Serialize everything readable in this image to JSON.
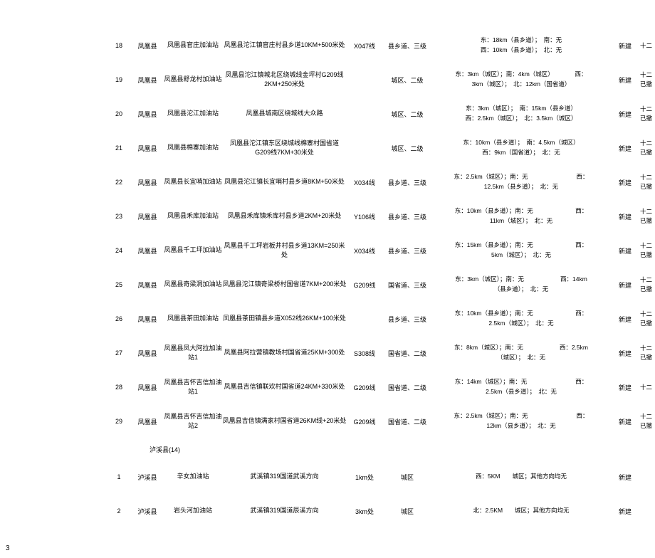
{
  "pageNumber": "3",
  "sectionHead": "泸溪县(14)",
  "rows": [
    {
      "idx": "18",
      "county": "凤凰县",
      "name": "凤凰县官庄加油站",
      "loc": "凤凰县沱江镇官庄村县乡道10KM+500米处",
      "road": "X047线",
      "class": "县乡道、三级",
      "dist1": "东：18km（县乡道）；　南：无",
      "dist2": "西：10km（县乡道）；　北：无",
      "build": "新建",
      "notes": "十二"
    },
    {
      "idx": "19",
      "county": "凤凰县",
      "name": "凤凰县舒龙村加油站",
      "loc": "凤凰县沱江镇城北区绕城线金坪村G209线2KM+250米处",
      "road": "",
      "class": "城区、二级",
      "dist1": "东：3km（城区）；南：4km（城区）　　　　西：",
      "dist2": "3km（城区）；　北：12km（国省道）",
      "build": "新建",
      "notes": "十二\n已撤"
    },
    {
      "idx": "20",
      "county": "凤凰县",
      "name": "凤凰县沱江加油站",
      "loc": "凤凰县城南区绕城线大众路",
      "road": "",
      "class": "城区、二级",
      "dist1": "东：3km（城区）；　南：15km（县乡道）",
      "dist2": "西：2.5km（城区）；　北：3.5km（城区）",
      "build": "新建",
      "notes": "十二\n已撤"
    },
    {
      "idx": "21",
      "county": "凤凰县",
      "name": "凤凰县棉寨加油站",
      "loc": "凤凰县沱江镇东区绕城线棉寨村国省道G209线7KM+30米处",
      "road": "",
      "class": "城区、二级",
      "dist1": "东：10km（县乡道）；　南：4.5km（城区）",
      "dist2": "西：9km（国省道）；　北：无",
      "build": "新建",
      "notes": "十二\n已撤"
    },
    {
      "idx": "22",
      "county": "凤凰县",
      "name": "凤凰县长宜哨加油站",
      "loc": "凤凰县沱江镇长宜哨村县乡道8KM+50米处",
      "road": "X034线",
      "class": "县乡道、三级",
      "dist1": "东：2.5km（城区）；南：无　　　　　　　　西：",
      "dist2": "12.5km（县乡道）；　北：无",
      "build": "新建",
      "notes": "十二\n已撤"
    },
    {
      "idx": "23",
      "county": "凤凰县",
      "name": "凤凰县禾库加油站",
      "loc": "凤凰县禾库镇禾库村县乡道2KM+20米处",
      "road": "Y106线",
      "class": "县乡道、三级",
      "dist1": "东：10km（县乡道）；南：无　　　　　　　西：",
      "dist2": "11km（城区）；　北：无",
      "build": "新建",
      "notes": "十二\n已撤"
    },
    {
      "idx": "24",
      "county": "凤凰县",
      "name": "凤凰县千工坪加油站",
      "loc": "凤凰县千工坪岩板井村县乡道13KM=250米处",
      "road": "X034线",
      "class": "县乡道、三级",
      "dist1": "东：15km（县乡道）；南：无　　　　　　　西：",
      "dist2": "5km（城区）；　北：无",
      "build": "新建",
      "notes": "十二\n已撤"
    },
    {
      "idx": "25",
      "county": "凤凰县",
      "name": "凤凰县奇梁洞加油站",
      "loc": "凤凰县沱江镇奇梁桥村国省道7KM+200米处",
      "road": "G209线",
      "class": "国省道、三级",
      "dist1": "东：3km（城区）；南：无　　　　　　西：14km",
      "dist2": "（县乡道）；　北：无",
      "build": "新建",
      "notes": "十二\n已撤"
    },
    {
      "idx": "26",
      "county": "凤凰县",
      "name": "凤凰县茶田加油站",
      "loc": "凤凰县茶田镇县乡道X052线26KM+100米处",
      "road": "",
      "class": "县乡道、三级",
      "dist1": "东：10km（县乡道）；南：无　　　　　　　西：",
      "dist2": "2.5km（城区）；　北：无",
      "build": "新建",
      "notes": "十二\n已撤"
    },
    {
      "idx": "27",
      "county": "凤凰县",
      "name": "凤凰县凤大阿拉加油站1",
      "loc": "凤凰县阿拉营镇教场村国省道25KM+300处",
      "road": "S308线",
      "class": "国省道、二级",
      "dist1": "东：8km（城区）；南：无　　　　　　西：2.5km",
      "dist2": "（城区）；　北：无",
      "build": "新建",
      "notes": "十二\n已撤"
    },
    {
      "idx": "28",
      "county": "凤凰县",
      "name": "凤凰县吉怀吉信加油站1",
      "loc": "凤凰县吉信镇联欢村国省道24KM+330米处",
      "road": "G209线",
      "class": "国省道、二级",
      "dist1": "东：14km（城区）；南：无　　　　　　　　西：",
      "dist2": "2.5km（县乡道）；　北：无",
      "build": "新建",
      "notes": "十二"
    },
    {
      "idx": "29",
      "county": "凤凰县",
      "name": "凤凰县吉怀吉信加油站2",
      "loc": "凤凰县吉信镇满家村国省道26KM线+20米处",
      "road": "G209线",
      "class": "国省道、二级",
      "dist1": "东：2.5km（城区）；南：无　　　　　　　　西：",
      "dist2": "12km（县乡道）；　北：无",
      "build": "新建",
      "notes": "十二\n已撤"
    }
  ],
  "rows2": [
    {
      "idx": "1",
      "county": "泸溪县",
      "name": "辛女加油站",
      "loc": "武溪镇319国道武溪方向",
      "road": "1km处",
      "class": "城区",
      "dist1": "西：5KM　　城区；其他方向均无",
      "dist2": "",
      "build": "新建",
      "notes": ""
    },
    {
      "idx": "2",
      "county": "泸溪县",
      "name": "岩头河加油站",
      "loc": "武溪镇319国道辰溪方向",
      "road": "3km处",
      "class": "城区",
      "dist1": "北：2.5KM　　城区；其他方向均无",
      "dist2": "",
      "build": "新建",
      "notes": ""
    }
  ]
}
